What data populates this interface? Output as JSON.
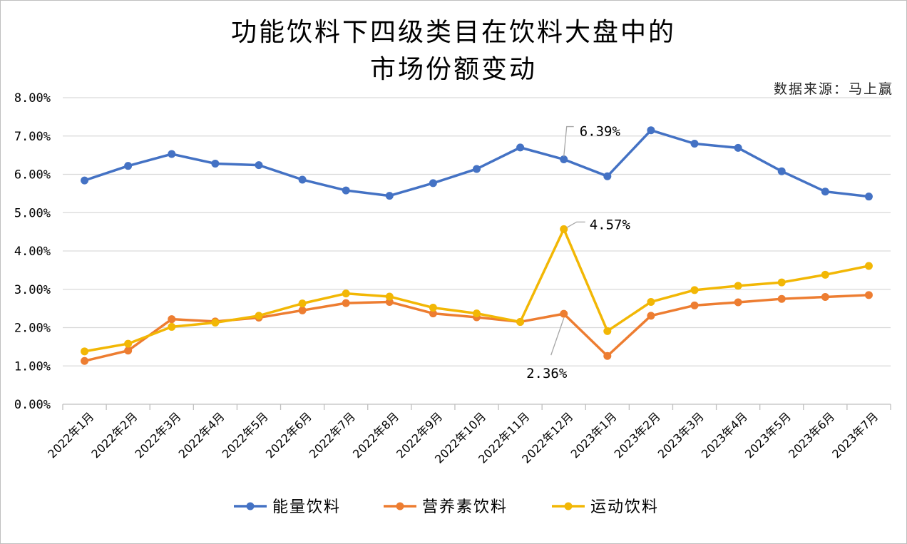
{
  "chart_data": {
    "type": "line",
    "title": "功能饮料下四级类目在饮料大盘中的",
    "subtitle": "市场份额变动",
    "source_note": "数据来源：马上赢",
    "categories": [
      "2022年1月",
      "2022年2月",
      "2022年3月",
      "2022年4月",
      "2022年5月",
      "2022年6月",
      "2022年7月",
      "2022年8月",
      "2022年9月",
      "2022年10月",
      "2022年11月",
      "2022年12月",
      "2023年1月",
      "2023年2月",
      "2023年3月",
      "2023年4月",
      "2023年5月",
      "2023年6月",
      "2023年7月"
    ],
    "ylim": [
      0,
      0.08
    ],
    "yticks": [
      {
        "value": 0,
        "label": "0.00%"
      },
      {
        "value": 0.01,
        "label": "1.00%"
      },
      {
        "value": 0.02,
        "label": "2.00%"
      },
      {
        "value": 0.03,
        "label": "3.00%"
      },
      {
        "value": 0.04,
        "label": "4.00%"
      },
      {
        "value": 0.05,
        "label": "5.00%"
      },
      {
        "value": 0.06,
        "label": "6.00%"
      },
      {
        "value": 0.07,
        "label": "7.00%"
      },
      {
        "value": 0.08,
        "label": "8.00%"
      }
    ],
    "grid": true,
    "legend_position": "bottom",
    "series": [
      {
        "name": "能量饮料",
        "color": "#4472C4",
        "values": [
          0.0584,
          0.0622,
          0.0653,
          0.0628,
          0.0624,
          0.0586,
          0.0558,
          0.0544,
          0.0577,
          0.0614,
          0.067,
          0.0639,
          0.0595,
          0.0715,
          0.068,
          0.0669,
          0.0608,
          0.0555,
          0.0542
        ]
      },
      {
        "name": "营养素饮料",
        "color": "#ED7D31",
        "values": [
          0.0113,
          0.014,
          0.0222,
          0.0216,
          0.0226,
          0.0245,
          0.0264,
          0.0267,
          0.0237,
          0.0227,
          0.0215,
          0.0236,
          0.0126,
          0.0231,
          0.0258,
          0.0266,
          0.0275,
          0.028,
          0.0285
        ]
      },
      {
        "name": "运动饮料",
        "color": "#F2B705",
        "values": [
          0.0138,
          0.0158,
          0.0202,
          0.0213,
          0.0231,
          0.0263,
          0.0289,
          0.0281,
          0.0252,
          0.0237,
          0.0215,
          0.0457,
          0.0191,
          0.0267,
          0.0298,
          0.0309,
          0.0318,
          0.0338,
          0.0361
        ]
      }
    ],
    "annotations": [
      {
        "series": 0,
        "index": 11,
        "text": "6.39%"
      },
      {
        "series": 2,
        "index": 11,
        "text": "4.57%"
      },
      {
        "series": 1,
        "index": 11,
        "text": "2.36%"
      }
    ]
  }
}
